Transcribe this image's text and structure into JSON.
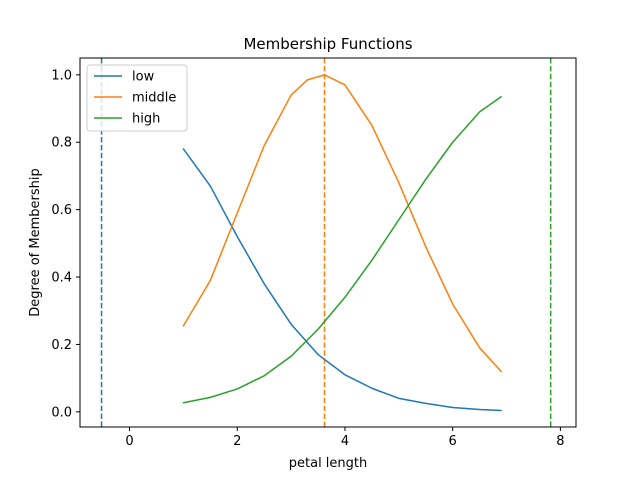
{
  "chart_data": {
    "type": "line",
    "title": "Membership Functions",
    "xlabel": "petal length",
    "ylabel": "Degree of Membership",
    "xlim": [
      -0.92,
      8.29
    ],
    "ylim": [
      -0.045,
      1.05
    ],
    "xticks": [
      0,
      2,
      4,
      6,
      8
    ],
    "yticks": [
      0.0,
      0.2,
      0.4,
      0.6,
      0.8,
      1.0
    ],
    "xtick_labels": [
      "0",
      "2",
      "4",
      "6",
      "8"
    ],
    "ytick_labels": [
      "0.0",
      "0.2",
      "0.4",
      "0.6",
      "0.8",
      "1.0"
    ],
    "grid": false,
    "legend_position": "upper-left",
    "series": [
      {
        "name": "low",
        "color": "#1f77b4",
        "x": [
          1.0,
          1.5,
          2.0,
          2.5,
          3.0,
          3.5,
          4.0,
          4.5,
          5.0,
          5.5,
          6.0,
          6.5,
          6.9
        ],
        "y": [
          0.78,
          0.67,
          0.52,
          0.38,
          0.26,
          0.17,
          0.11,
          0.07,
          0.04,
          0.025,
          0.013,
          0.007,
          0.004
        ]
      },
      {
        "name": "middle",
        "color": "#ff7f0e",
        "x": [
          1.0,
          1.5,
          2.0,
          2.5,
          3.0,
          3.3,
          3.62,
          4.0,
          4.5,
          5.0,
          5.5,
          6.0,
          6.5,
          6.9
        ],
        "y": [
          0.255,
          0.39,
          0.59,
          0.79,
          0.94,
          0.985,
          1.0,
          0.97,
          0.85,
          0.68,
          0.49,
          0.32,
          0.19,
          0.12
        ]
      },
      {
        "name": "high",
        "color": "#2ca02c",
        "x": [
          1.0,
          1.5,
          2.0,
          2.5,
          3.0,
          3.5,
          4.0,
          4.5,
          5.0,
          5.5,
          6.0,
          6.5,
          6.9
        ],
        "y": [
          0.027,
          0.043,
          0.068,
          0.107,
          0.165,
          0.245,
          0.34,
          0.45,
          0.57,
          0.69,
          0.8,
          0.89,
          0.935
        ]
      }
    ],
    "vlines": [
      {
        "x": -0.52,
        "color": "#1f77b4",
        "style": "dashed"
      },
      {
        "x": 3.62,
        "color": "#ff7f0e",
        "style": "dashed"
      },
      {
        "x": 7.82,
        "color": "#2ca02c",
        "style": "dashed"
      }
    ]
  }
}
